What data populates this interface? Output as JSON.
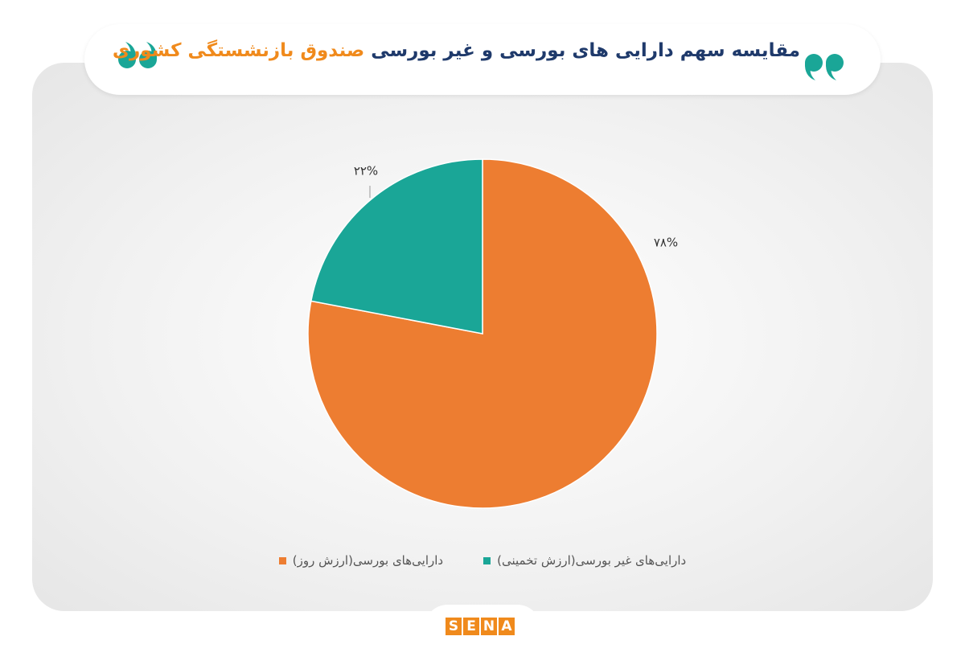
{
  "chart_data": {
    "type": "pie",
    "title": [
      "مقایسه سهم دارایی های بورسی و غیر بورسی",
      "صندوق بازنشستگی کشوری"
    ],
    "categories": [
      "دارایی‌های بورسی(ارزش روز)",
      "دارایی‌های غیر بورسی(ارزش تخمینی)"
    ],
    "values": [
      78,
      22
    ],
    "value_labels": [
      "۷۸%",
      "۲۲%"
    ],
    "colors": [
      "#ed7d31",
      "#1aa697"
    ],
    "logo": "SENA"
  }
}
